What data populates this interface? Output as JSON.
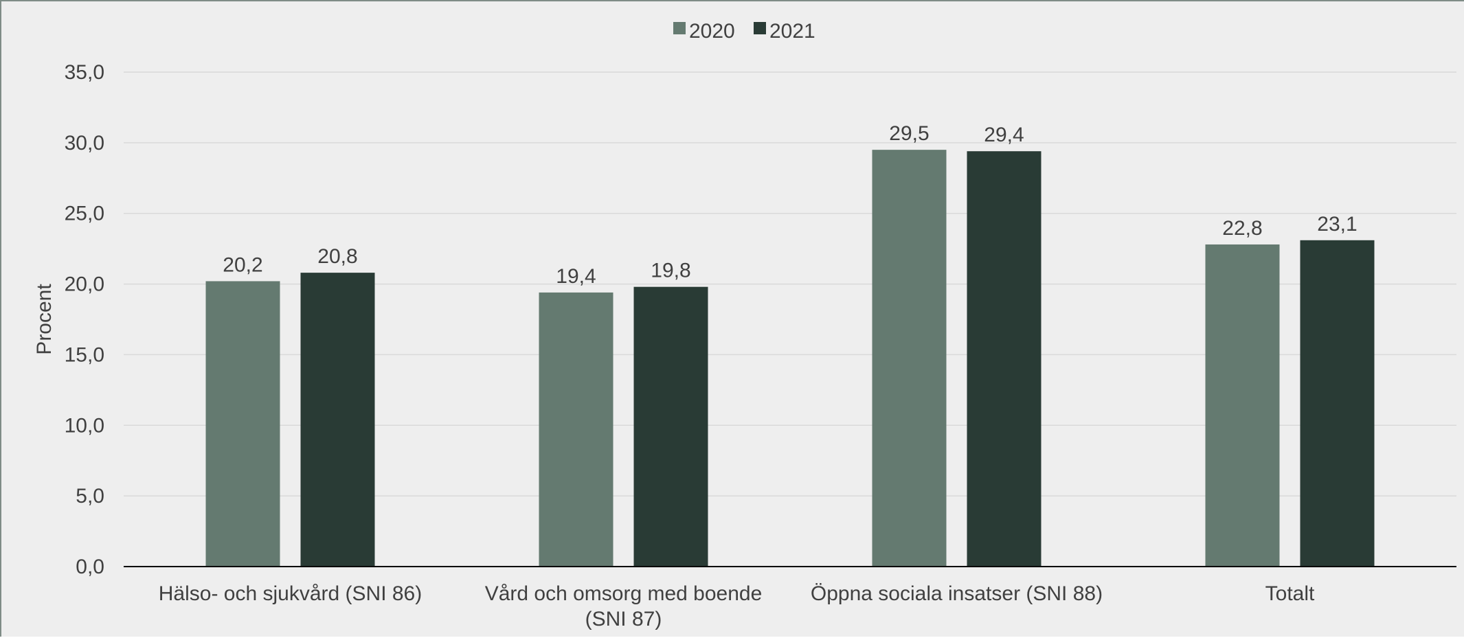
{
  "chart_data": {
    "type": "bar",
    "title": "",
    "xlabel": "",
    "ylabel": "Procent",
    "ylim": [
      0,
      35
    ],
    "y_ticks": [
      "0,0",
      "5,0",
      "10,0",
      "15,0",
      "20,0",
      "25,0",
      "30,0",
      "35,0"
    ],
    "y_tick_values": [
      0,
      5,
      10,
      15,
      20,
      25,
      30,
      35
    ],
    "grid": true,
    "legend_position": "top-center",
    "categories": [
      [
        "Hälso- och sjukvård (SNI 86)"
      ],
      [
        "Vård och omsorg med boende",
        "(SNI 87)"
      ],
      [
        "Öppna sociala insatser (SNI 88)"
      ],
      [
        "Totalt"
      ]
    ],
    "series": [
      {
        "name": "2020",
        "color": "#647a70",
        "values": [
          20.2,
          19.4,
          29.5,
          22.8
        ],
        "labels": [
          "20,2",
          "19,4",
          "29,5",
          "22,8"
        ]
      },
      {
        "name": "2021",
        "color": "#293b35",
        "values": [
          20.8,
          19.8,
          29.4,
          23.1
        ],
        "labels": [
          "20,8",
          "19,8",
          "29,4",
          "23,1"
        ]
      }
    ]
  }
}
